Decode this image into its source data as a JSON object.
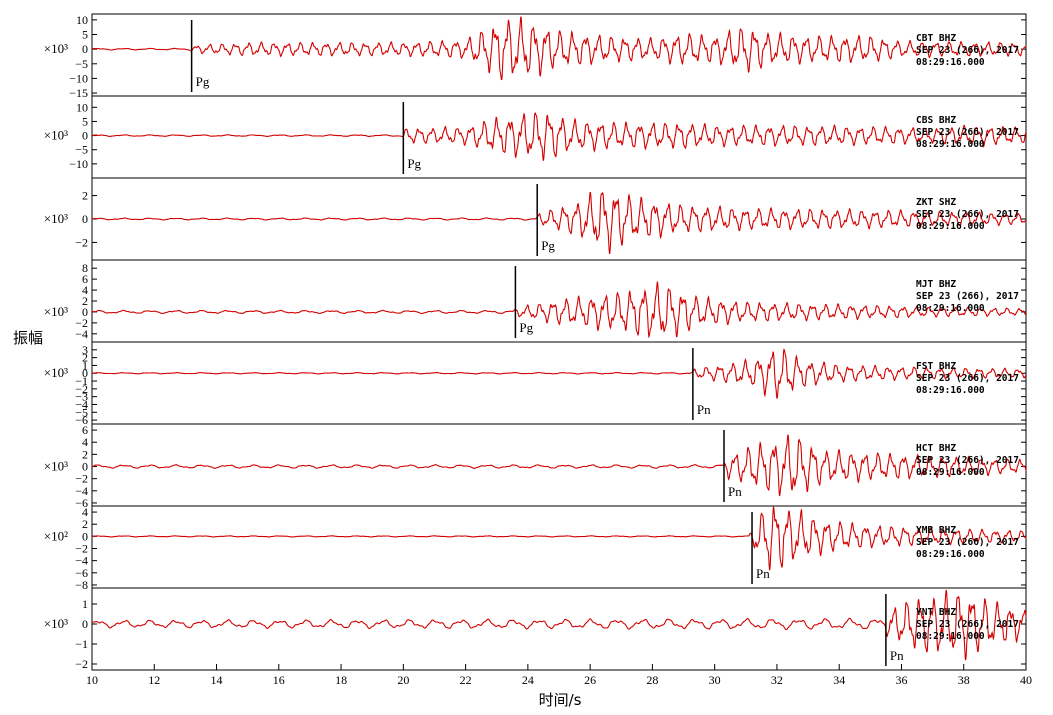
{
  "chart_data": {
    "type": "line",
    "xlabel": "时间/s",
    "ylabel": "振幅",
    "xlim": [
      10,
      40
    ],
    "xticks": [
      10,
      12,
      14,
      16,
      18,
      20,
      22,
      24,
      26,
      28,
      30,
      32,
      34,
      36,
      38,
      40
    ],
    "grid": false,
    "trace_color": "#d40000",
    "panels": [
      {
        "scale": "×10³",
        "ylim": [
          -16,
          12
        ],
        "yticks": [
          10,
          5,
          0,
          -5,
          -10,
          -15
        ],
        "ytick_labels": [
          "10",
          "5",
          "0",
          "−5",
          "−10",
          "−15"
        ],
        "pick": {
          "phase": "Pg",
          "time": 13.2
        },
        "station": [
          "CBT  BHZ",
          "SEP 23 (266), 2017",
          "08:29:16.000"
        ],
        "envelope": [
          [
            10,
            0.3
          ],
          [
            13.1,
            0.3
          ],
          [
            13.3,
            1.5
          ],
          [
            15,
            2.5
          ],
          [
            17,
            2.5
          ],
          [
            20,
            2.5
          ],
          [
            22,
            3.5
          ],
          [
            23.2,
            12
          ],
          [
            24,
            11
          ],
          [
            25,
            7
          ],
          [
            26.5,
            5
          ],
          [
            28,
            4
          ],
          [
            29,
            6
          ],
          [
            30,
            5
          ],
          [
            31,
            9
          ],
          [
            31.8,
            6
          ],
          [
            33,
            5
          ],
          [
            35,
            5
          ],
          [
            36,
            3
          ],
          [
            40,
            2.5
          ]
        ]
      },
      {
        "scale": "×10³",
        "ylim": [
          -15,
          14
        ],
        "yticks": [
          10,
          5,
          0,
          -5,
          -10
        ],
        "ytick_labels": [
          "10",
          "5",
          "0",
          "−5",
          "−10"
        ],
        "pick": {
          "phase": "Pg",
          "time": 20.0
        },
        "station": [
          "CBS  BHZ",
          "SEP 23 (266), 2017",
          "08:29:16.000"
        ],
        "envelope": [
          [
            10,
            0.3
          ],
          [
            19.9,
            0.3
          ],
          [
            20.1,
            3
          ],
          [
            21,
            3
          ],
          [
            22,
            3.5
          ],
          [
            23,
            7
          ],
          [
            24.5,
            10
          ],
          [
            25.5,
            6
          ],
          [
            27,
            5
          ],
          [
            29,
            5
          ],
          [
            30,
            4
          ],
          [
            32,
            4
          ],
          [
            35,
            3.5
          ],
          [
            37,
            3
          ],
          [
            38.5,
            4
          ],
          [
            40,
            3
          ]
        ]
      },
      {
        "scale": "×10³",
        "ylim": [
          -3.5,
          3.5
        ],
        "yticks": [
          2,
          0,
          -2
        ],
        "ytick_labels": [
          "2",
          "0",
          "−2"
        ],
        "pick": {
          "phase": "Pg",
          "time": 24.3
        },
        "station": [
          "ZKT  SHZ",
          "SEP 23 (266), 2017",
          "08:29:16.000"
        ],
        "envelope": [
          [
            10,
            0.08
          ],
          [
            24.2,
            0.1
          ],
          [
            24.4,
            0.6
          ],
          [
            25.5,
            1.5
          ],
          [
            26.5,
            3.2
          ],
          [
            27.5,
            2
          ],
          [
            29,
            1.3
          ],
          [
            31,
            1
          ],
          [
            34,
            0.9
          ],
          [
            36,
            0.8
          ],
          [
            40,
            0.5
          ]
        ]
      },
      {
        "scale": "×10³",
        "ylim": [
          -5.5,
          9.5
        ],
        "yticks": [
          8,
          6,
          4,
          2,
          0,
          -2,
          -4
        ],
        "ytick_labels": [
          "8",
          "6",
          "4",
          "2",
          "0",
          "−2",
          "−4"
        ],
        "pick": {
          "phase": "Pg",
          "time": 23.6
        },
        "station": [
          "MJT  BHZ",
          "SEP 23 (266), 2017",
          "08:29:16.000"
        ],
        "envelope": [
          [
            10,
            0.3
          ],
          [
            23.5,
            0.3
          ],
          [
            23.7,
            1
          ],
          [
            25,
            2.5
          ],
          [
            27,
            4
          ],
          [
            28.3,
            6
          ],
          [
            29.5,
            3
          ],
          [
            31,
            2
          ],
          [
            34,
            1.5
          ],
          [
            37,
            1
          ],
          [
            40,
            0.7
          ]
        ]
      },
      {
        "scale": "×10³",
        "ylim": [
          -6.5,
          4
        ],
        "yticks": [
          3,
          2,
          1,
          0,
          -1,
          -2,
          -3,
          -4,
          -5,
          -6
        ],
        "ytick_labels": [
          "3",
          "2",
          "1",
          "0",
          "−1",
          "−2",
          "−3",
          "−4",
          "−5",
          "−6"
        ],
        "pick": {
          "phase": "Pn",
          "time": 29.3
        },
        "station": [
          "FST  BHZ",
          "SEP 23 (266), 2017",
          "08:29:16.000"
        ],
        "envelope": [
          [
            10,
            0.08
          ],
          [
            29.2,
            0.1
          ],
          [
            29.4,
            0.7
          ],
          [
            30.5,
            1.4
          ],
          [
            31.3,
            2
          ],
          [
            32,
            4
          ],
          [
            32.8,
            2
          ],
          [
            34,
            1.2
          ],
          [
            36,
            0.9
          ],
          [
            40,
            0.6
          ]
        ]
      },
      {
        "scale": "×10³",
        "ylim": [
          -6.5,
          7
        ],
        "yticks": [
          6,
          4,
          2,
          0,
          -2,
          -4,
          -6
        ],
        "ytick_labels": [
          "6",
          "4",
          "2",
          "0",
          "−2",
          "−4",
          "−6"
        ],
        "pick": {
          "phase": "Pn",
          "time": 30.3
        },
        "station": [
          "HCT  BHZ",
          "SEP 23 (266), 2017",
          "08:29:16.000"
        ],
        "envelope": [
          [
            10,
            0.3
          ],
          [
            30.2,
            0.3
          ],
          [
            30.4,
            2
          ],
          [
            31.3,
            4
          ],
          [
            32.5,
            6
          ],
          [
            33.5,
            3
          ],
          [
            35,
            2.5
          ],
          [
            37,
            2
          ],
          [
            40,
            1.2
          ]
        ]
      },
      {
        "scale": "×10²",
        "ylim": [
          -8.5,
          5
        ],
        "yticks": [
          4,
          2,
          0,
          -2,
          -4,
          -6,
          -8
        ],
        "ytick_labels": [
          "4",
          "2",
          "0",
          "−2",
          "−4",
          "−6",
          "−8"
        ],
        "pick": {
          "phase": "Pn",
          "time": 31.2
        },
        "station": [
          "YMB  BHZ",
          "SEP 23 (266), 2017",
          "08:29:16.000"
        ],
        "envelope": [
          [
            10,
            0.1
          ],
          [
            31.1,
            0.1
          ],
          [
            31.3,
            3
          ],
          [
            31.8,
            6.5
          ],
          [
            32.5,
            5
          ],
          [
            33.5,
            3
          ],
          [
            35,
            2
          ],
          [
            37,
            1.5
          ],
          [
            40,
            1
          ]
        ]
      },
      {
        "scale": "×10³",
        "ylim": [
          -2.3,
          1.8
        ],
        "yticks": [
          1,
          0,
          -1,
          -2
        ],
        "ytick_labels": [
          "1",
          "0",
          "−1",
          "−2"
        ],
        "pick": {
          "phase": "Pn",
          "time": 35.5
        },
        "station": [
          "YNT  BHZ",
          "SEP 23 (266), 2017",
          "08:29:16.000"
        ],
        "envelope": [
          [
            10,
            0.2
          ],
          [
            35.4,
            0.3
          ],
          [
            35.6,
            0.8
          ],
          [
            36.5,
            1.5
          ],
          [
            38,
            1.9
          ],
          [
            39,
            1.2
          ],
          [
            40,
            0.8
          ]
        ]
      }
    ]
  }
}
